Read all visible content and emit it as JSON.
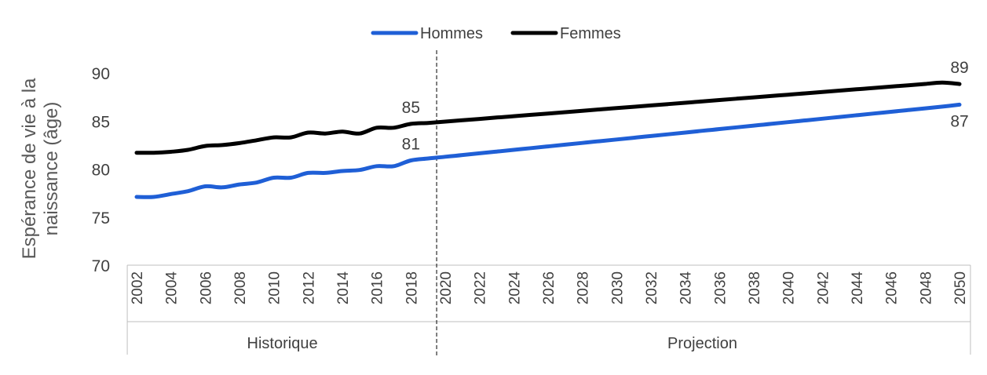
{
  "chart_data": {
    "type": "line",
    "title": "",
    "ylabel_lines": [
      "Espérance de vie à la",
      "naissance (âge)"
    ],
    "xlabel": "",
    "ylim": [
      70,
      90
    ],
    "yticks": [
      70,
      75,
      80,
      85,
      90
    ],
    "x": [
      2002,
      2003,
      2004,
      2005,
      2006,
      2007,
      2008,
      2009,
      2010,
      2011,
      2012,
      2013,
      2014,
      2015,
      2016,
      2017,
      2018,
      2019,
      2020,
      2021,
      2022,
      2023,
      2024,
      2025,
      2026,
      2027,
      2028,
      2029,
      2030,
      2031,
      2032,
      2033,
      2034,
      2035,
      2036,
      2037,
      2038,
      2039,
      2040,
      2041,
      2042,
      2043,
      2044,
      2045,
      2046,
      2047,
      2048,
      2049,
      2050
    ],
    "xtick_labels": [
      "2002",
      "2004",
      "2006",
      "2008",
      "2010",
      "2012",
      "2014",
      "2016",
      "2018",
      "2020",
      "2022",
      "2024",
      "2026",
      "2028",
      "2030",
      "2032",
      "2034",
      "2036",
      "2038",
      "2040",
      "2042",
      "2044",
      "2046",
      "2048",
      "2050"
    ],
    "groups": [
      {
        "label": "Historique",
        "start": 2002,
        "end": 2019
      },
      {
        "label": "Projection",
        "start": 2020,
        "end": 2050
      }
    ],
    "divider_after_year": 2019,
    "series": [
      {
        "name": "Hommes",
        "color": "#1F5FD6",
        "values": [
          77.1,
          77.1,
          77.4,
          77.7,
          78.2,
          78.1,
          78.4,
          78.6,
          79.1,
          79.1,
          79.6,
          79.6,
          79.8,
          79.9,
          80.3,
          80.3,
          80.9,
          81.1,
          81.28,
          81.46,
          81.64,
          81.82,
          82.0,
          82.18,
          82.36,
          82.54,
          82.72,
          82.9,
          83.08,
          83.26,
          83.44,
          83.62,
          83.8,
          83.98,
          84.16,
          84.34,
          84.52,
          84.7,
          84.88,
          85.06,
          85.24,
          85.42,
          85.6,
          85.78,
          85.96,
          86.14,
          86.32,
          86.5,
          86.7
        ]
      },
      {
        "name": "Femmes",
        "color": "#000000",
        "values": [
          81.7,
          81.7,
          81.8,
          82.0,
          82.4,
          82.5,
          82.7,
          83.0,
          83.3,
          83.3,
          83.8,
          83.7,
          83.9,
          83.7,
          84.3,
          84.3,
          84.7,
          84.8,
          84.94,
          85.08,
          85.22,
          85.36,
          85.5,
          85.64,
          85.78,
          85.92,
          86.06,
          86.2,
          86.34,
          86.48,
          86.62,
          86.76,
          86.9,
          87.04,
          87.18,
          87.32,
          87.46,
          87.6,
          87.74,
          87.88,
          88.02,
          88.16,
          88.3,
          88.44,
          88.58,
          88.72,
          88.86,
          89.0,
          88.85
        ]
      }
    ],
    "annotations": [
      {
        "text": "85",
        "series": "Femmes",
        "year": 2018,
        "position": "above"
      },
      {
        "text": "81",
        "series": "Hommes",
        "year": 2018,
        "position": "above"
      },
      {
        "text": "89",
        "series": "Femmes",
        "year": 2050,
        "position": "above"
      },
      {
        "text": "87",
        "series": "Hommes",
        "year": 2050,
        "position": "below"
      }
    ],
    "legend_position": "top-center",
    "grid": false
  }
}
